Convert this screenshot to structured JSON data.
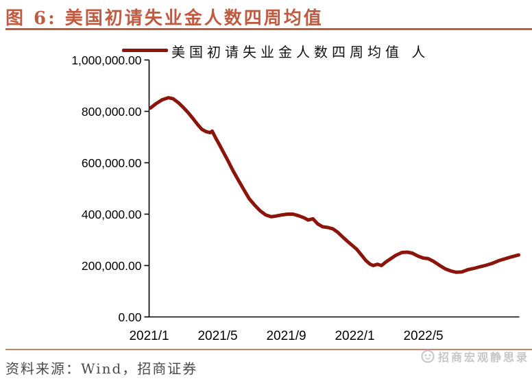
{
  "header": {
    "title": "图 6: 美国初请失业金人数四周均值"
  },
  "footer": {
    "source": "资料来源：Wind，招商证券",
    "watermark": "招商宏观静思录"
  },
  "colors": {
    "accent": "#BF5B41",
    "footer_divider": "#CC8168",
    "series_line": "#8B150B",
    "axis": "#000000",
    "source_text": "#4A4A4A",
    "watermark_text": "#C6C6C6"
  },
  "chart_data": {
    "type": "line",
    "title": "美国初请失业金人数四周均值",
    "unit": "人",
    "legend": "美国初请失业金人数四周均值 人",
    "legend_position": "top",
    "grid": false,
    "x_epoch_label": "2021/1",
    "x_tick_labels": [
      "2021/1",
      "2021/5",
      "2021/9",
      "2022/1",
      "2022/5"
    ],
    "x_tick_months": [
      0,
      4,
      8,
      12,
      16
    ],
    "xlim_months": [
      0,
      21.6
    ],
    "y_tick_labels": [
      "0.00",
      "200,000.00",
      "400,000.00",
      "600,000.00",
      "800,000.00",
      "1,000,000.00"
    ],
    "y_tick_values": [
      0,
      200000,
      400000,
      600000,
      800000,
      1000000
    ],
    "ylim": [
      0,
      1000000
    ],
    "series": [
      {
        "name": "美国初请失业金人数四周均值 人",
        "color": "#8B150B",
        "points_months_value": [
          [
            0.08,
            813000
          ],
          [
            0.4,
            830000
          ],
          [
            0.76,
            845000
          ],
          [
            1.12,
            853000
          ],
          [
            1.4,
            849000
          ],
          [
            1.72,
            833000
          ],
          [
            2.0,
            815000
          ],
          [
            2.28,
            795000
          ],
          [
            2.56,
            772000
          ],
          [
            2.84,
            748000
          ],
          [
            3.08,
            730000
          ],
          [
            3.32,
            721000
          ],
          [
            3.56,
            717000
          ],
          [
            3.68,
            723000
          ],
          [
            3.88,
            697000
          ],
          [
            4.08,
            673000
          ],
          [
            4.32,
            643000
          ],
          [
            4.6,
            608000
          ],
          [
            4.88,
            571000
          ],
          [
            5.2,
            533000
          ],
          [
            5.52,
            496000
          ],
          [
            5.84,
            460000
          ],
          [
            6.16,
            435000
          ],
          [
            6.48,
            413000
          ],
          [
            6.8,
            397000
          ],
          [
            7.12,
            390000
          ],
          [
            7.44,
            393000
          ],
          [
            7.76,
            397000
          ],
          [
            8.08,
            400000
          ],
          [
            8.4,
            400000
          ],
          [
            8.72,
            394000
          ],
          [
            9.04,
            386000
          ],
          [
            9.28,
            377000
          ],
          [
            9.56,
            382000
          ],
          [
            9.84,
            362000
          ],
          [
            10.12,
            351000
          ],
          [
            10.44,
            348000
          ],
          [
            10.72,
            343000
          ],
          [
            11.0,
            330000
          ],
          [
            11.28,
            312000
          ],
          [
            11.56,
            295000
          ],
          [
            11.84,
            279000
          ],
          [
            12.12,
            263000
          ],
          [
            12.4,
            240000
          ],
          [
            12.64,
            220000
          ],
          [
            12.88,
            206000
          ],
          [
            13.08,
            200000
          ],
          [
            13.32,
            205000
          ],
          [
            13.56,
            200000
          ],
          [
            13.8,
            213000
          ],
          [
            14.08,
            226000
          ],
          [
            14.4,
            240000
          ],
          [
            14.76,
            251000
          ],
          [
            15.08,
            252000
          ],
          [
            15.36,
            248000
          ],
          [
            15.68,
            237000
          ],
          [
            16.0,
            229000
          ],
          [
            16.28,
            227000
          ],
          [
            16.6,
            216000
          ],
          [
            16.96,
            200000
          ],
          [
            17.28,
            187000
          ],
          [
            17.6,
            179000
          ],
          [
            17.92,
            174000
          ],
          [
            18.24,
            175000
          ],
          [
            18.6,
            184000
          ],
          [
            18.96,
            189000
          ],
          [
            19.28,
            195000
          ],
          [
            19.6,
            200000
          ],
          [
            20.0,
            208000
          ],
          [
            20.4,
            219000
          ],
          [
            20.8,
            227000
          ],
          [
            21.2,
            235000
          ],
          [
            21.56,
            241000
          ]
        ]
      }
    ]
  }
}
